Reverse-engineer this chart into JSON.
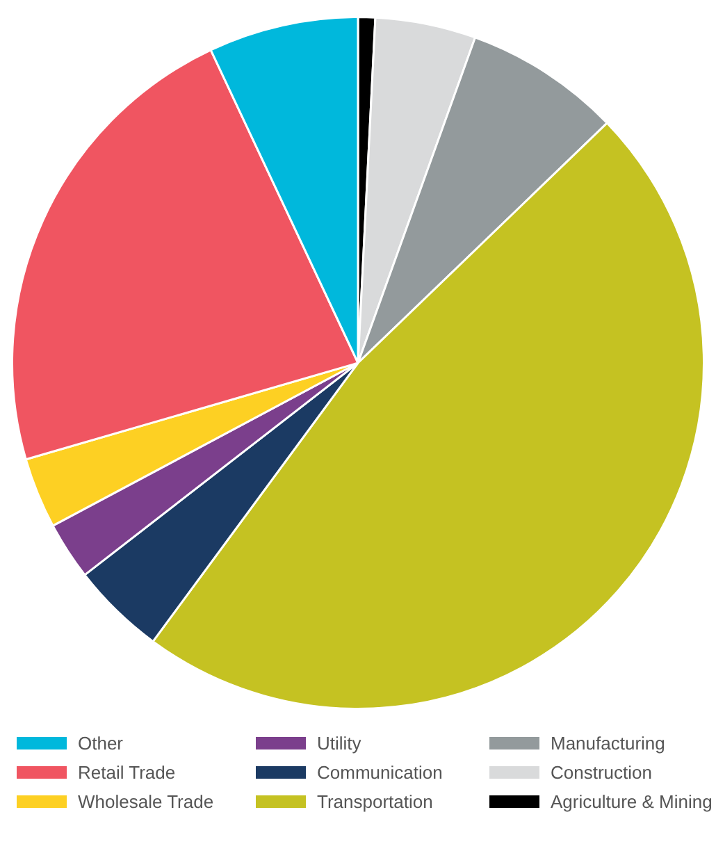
{
  "chart_data": {
    "type": "pie",
    "categories": [
      "Agriculture & Mining",
      "Construction",
      "Manufacturing",
      "Transportation",
      "Communication",
      "Utility",
      "Wholesale Trade",
      "Retail Trade",
      "Other"
    ],
    "values": [
      0.8,
      4.7,
      7.3,
      47.3,
      4.4,
      2.7,
      3.3,
      22.5,
      7.0
    ],
    "colors": [
      "#000000",
      "#d9dadb",
      "#939a9c",
      "#c5c222",
      "#1b3a63",
      "#7b3f8c",
      "#fdd023",
      "#f05561",
      "#00b8dc"
    ],
    "legend": "bottom"
  }
}
